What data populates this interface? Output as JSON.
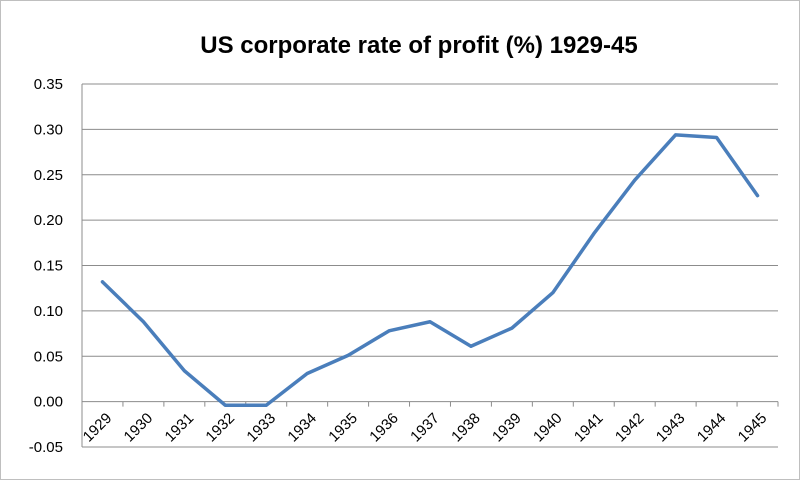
{
  "chart_data": {
    "type": "line",
    "title": "US corporate rate of profit (%) 1929-45",
    "xlabel": "",
    "ylabel": "",
    "categories": [
      "1929",
      "1930",
      "1931",
      "1932",
      "1933",
      "1934",
      "1935",
      "1936",
      "1937",
      "1938",
      "1939",
      "1940",
      "1941",
      "1942",
      "1943",
      "1944",
      "1945"
    ],
    "series": [
      {
        "values": [
          0.132,
          0.088,
          0.034,
          -0.004,
          -0.004,
          0.031,
          0.051,
          0.078,
          0.088,
          0.061,
          0.081,
          0.12,
          0.185,
          0.244,
          0.294,
          0.291,
          0.227
        ],
        "color": "#4a7ebb"
      }
    ],
    "y_ticks": [
      "-0.05",
      "0.00",
      "0.05",
      "0.10",
      "0.15",
      "0.20",
      "0.25",
      "0.30",
      "0.35"
    ],
    "ylim": [
      -0.05,
      0.35
    ],
    "grid": true,
    "legend": "none"
  }
}
